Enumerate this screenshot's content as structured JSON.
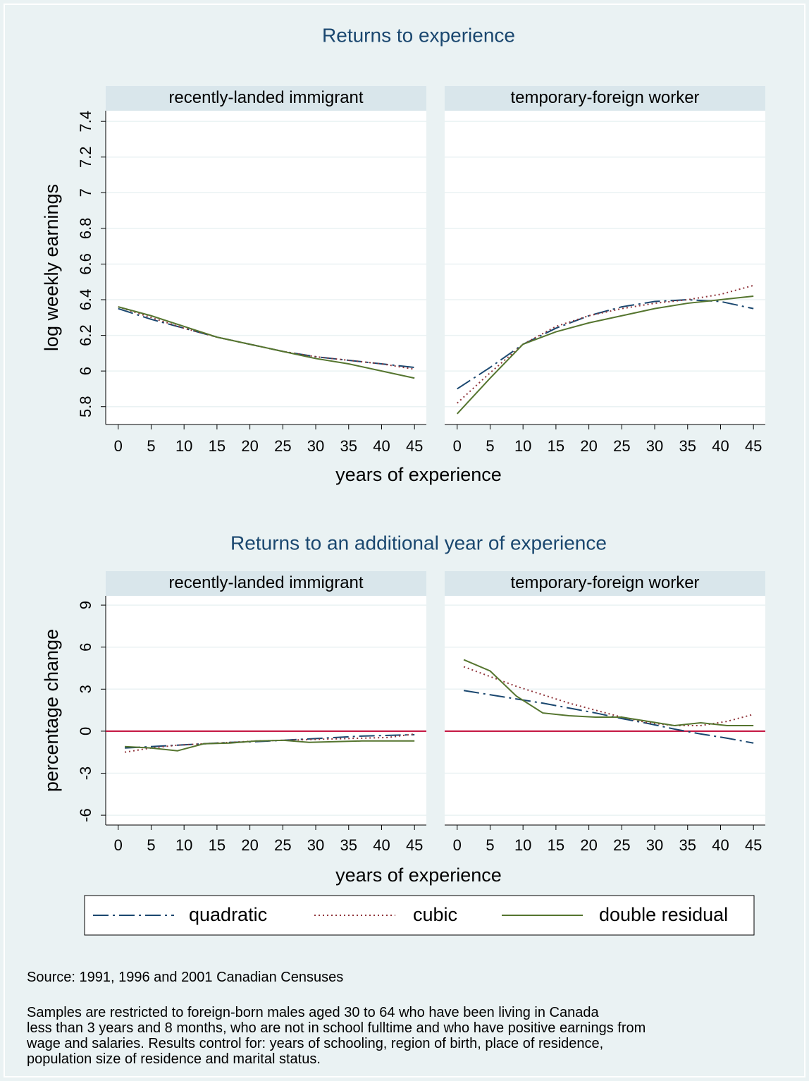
{
  "chart_data": [
    {
      "type": "line",
      "title": "Returns to experience",
      "xlabel": "years of experience",
      "ylabel": "log weekly earnings",
      "x": [
        0,
        5,
        10,
        15,
        20,
        25,
        30,
        35,
        40,
        45
      ],
      "xlim": [
        -1.9,
        46.8
      ],
      "xticks": [
        0,
        5,
        10,
        15,
        20,
        25,
        30,
        35,
        40,
        45
      ],
      "ylim": [
        5.7,
        7.46
      ],
      "yticks": [
        5.8,
        6,
        6.2,
        6.4,
        6.6,
        6.8,
        7,
        7.2,
        7.4
      ],
      "grid": true,
      "panels": [
        {
          "title": "recently-landed immigrant",
          "series": [
            {
              "name": "quadratic",
              "color": "#1a476f",
              "dash": "dashdot",
              "values": [
                6.35,
                6.29,
                6.24,
                6.19,
                6.15,
                6.11,
                6.08,
                6.06,
                6.04,
                6.02
              ]
            },
            {
              "name": "cubic",
              "color": "#90353b",
              "dash": "dot",
              "values": [
                6.36,
                6.3,
                6.24,
                6.19,
                6.15,
                6.11,
                6.08,
                6.06,
                6.04,
                6.01
              ]
            },
            {
              "name": "double residual",
              "color": "#55752f",
              "dash": "solid",
              "values": [
                6.36,
                6.31,
                6.25,
                6.19,
                6.15,
                6.11,
                6.07,
                6.04,
                6.0,
                5.96
              ]
            }
          ]
        },
        {
          "title": "temporary-foreign worker",
          "series": [
            {
              "name": "quadratic",
              "color": "#1a476f",
              "dash": "dashdot",
              "values": [
                5.9,
                6.02,
                6.15,
                6.24,
                6.31,
                6.36,
                6.39,
                6.4,
                6.39,
                6.35
              ]
            },
            {
              "name": "cubic",
              "color": "#90353b",
              "dash": "dot",
              "values": [
                5.82,
                5.99,
                6.15,
                6.25,
                6.31,
                6.35,
                6.38,
                6.4,
                6.43,
                6.48
              ]
            },
            {
              "name": "double residual",
              "color": "#55752f",
              "dash": "solid",
              "values": [
                5.76,
                5.96,
                6.15,
                6.22,
                6.27,
                6.31,
                6.35,
                6.38,
                6.4,
                6.42
              ]
            }
          ]
        }
      ]
    },
    {
      "type": "line",
      "title": "Returns to an additional year of experience",
      "xlabel": "years of experience",
      "ylabel": "percentage change",
      "x": [
        1,
        5,
        9,
        13,
        17,
        21,
        25,
        29,
        33,
        37,
        41,
        45
      ],
      "xlim": [
        -1.9,
        46.8
      ],
      "xticks": [
        0,
        5,
        10,
        15,
        20,
        25,
        30,
        35,
        40,
        45
      ],
      "ylim": [
        -6.7,
        9.66
      ],
      "yticks": [
        -6,
        -3,
        0,
        3,
        6,
        9
      ],
      "grid": true,
      "hline": 0,
      "hline_color": "#c10534",
      "panels": [
        {
          "title": "recently-landed immigrant",
          "series": [
            {
              "name": "quadratic",
              "color": "#1a476f",
              "dash": "dashdot",
              "values": [
                -1.2,
                -1.1,
                -1.0,
                -0.9,
                -0.8,
                -0.75,
                -0.65,
                -0.55,
                -0.45,
                -0.35,
                -0.3,
                -0.25
              ]
            },
            {
              "name": "cubic",
              "color": "#90353b",
              "dash": "dot",
              "values": [
                -1.5,
                -1.2,
                -1.0,
                -0.9,
                -0.8,
                -0.7,
                -0.65,
                -0.6,
                -0.55,
                -0.5,
                -0.45,
                -0.2
              ]
            },
            {
              "name": "double residual",
              "color": "#55752f",
              "dash": "solid",
              "values": [
                -1.1,
                -1.2,
                -1.4,
                -0.9,
                -0.85,
                -0.7,
                -0.65,
                -0.8,
                -0.75,
                -0.7,
                -0.7,
                -0.7
              ]
            }
          ]
        },
        {
          "title": "temporary-foreign worker",
          "series": [
            {
              "name": "quadratic",
              "color": "#1a476f",
              "dash": "dashdot",
              "values": [
                2.9,
                2.6,
                2.3,
                2.0,
                1.65,
                1.3,
                0.9,
                0.55,
                0.15,
                -0.2,
                -0.5,
                -0.85
              ]
            },
            {
              "name": "cubic",
              "color": "#90353b",
              "dash": "dot",
              "values": [
                4.6,
                3.9,
                3.2,
                2.6,
                2.0,
                1.5,
                1.0,
                0.6,
                0.4,
                0.4,
                0.7,
                1.2
              ]
            },
            {
              "name": "double residual",
              "color": "#55752f",
              "dash": "solid",
              "values": [
                5.1,
                4.3,
                2.5,
                1.3,
                1.1,
                1.0,
                1.0,
                0.7,
                0.4,
                0.6,
                0.4,
                0.4
              ]
            }
          ]
        }
      ]
    }
  ],
  "notes": {
    "source": "Source: 1991, 1996 and 2001 Canadian Censuses",
    "text": [
      "Samples are restricted to foreign-born males aged 30 to 64 who have been living in Canada",
      "less than 3 years and 8 months, who are not in school fulltime and who have positive earnings from",
      "wage and salaries. Results control for: years of schooling, region of birth, place of residence,",
      "population size of residence and marital status."
    ]
  }
}
